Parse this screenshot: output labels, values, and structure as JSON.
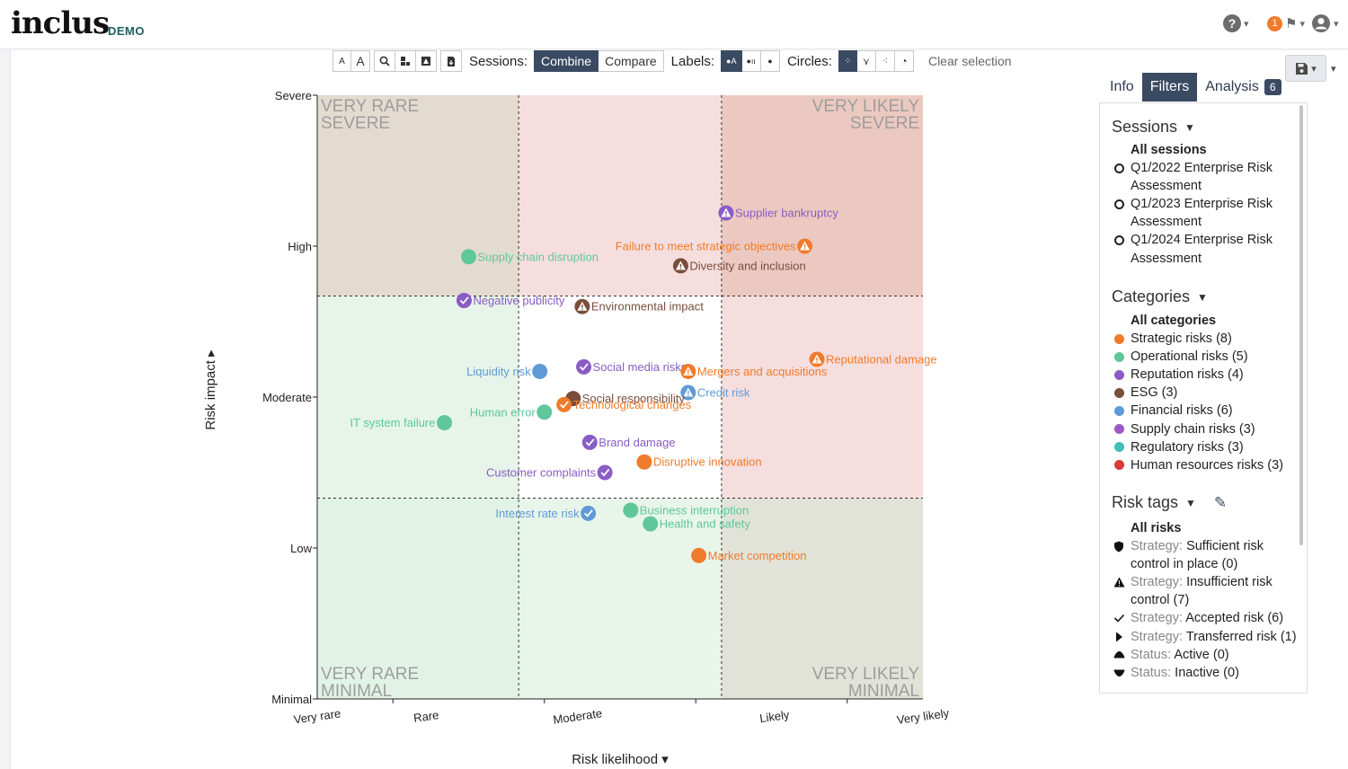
{
  "header": {
    "logo": "inclus",
    "logo_tag": "DEMO",
    "help_icon": "?",
    "notification_count": "1"
  },
  "toolbar": {
    "small_a": "A",
    "large_a": "A",
    "sessions_label": "Sessions:",
    "combine": "Combine",
    "compare": "Compare",
    "labels_label": "Labels:",
    "circles_label": "Circles:",
    "clear_selection": "Clear selection"
  },
  "tabs": {
    "info": "Info",
    "filters": "Filters",
    "analysis": "Analysis",
    "analysis_count": "6"
  },
  "filters": {
    "sessions_title": "Sessions",
    "sessions": [
      "All sessions",
      "Q1/2022 Enterprise Risk Assessment",
      "Q1/2023 Enterprise Risk Assessment",
      "Q1/2024 Enterprise Risk Assessment"
    ],
    "categories_title": "Categories",
    "categories": [
      {
        "label": "All categories",
        "color": ""
      },
      {
        "label": "Strategic risks (8)",
        "color": "#f07b2a"
      },
      {
        "label": "Operational risks (5)",
        "color": "#5fc79a"
      },
      {
        "label": "Reputation risks (4)",
        "color": "#8a5cc5"
      },
      {
        "label": "ESG (3)",
        "color": "#7a4e3c"
      },
      {
        "label": "Financial risks (6)",
        "color": "#5f9ad6"
      },
      {
        "label": "Supply chain risks (3)",
        "color": "#9b59c6"
      },
      {
        "label": "Regulatory risks (3)",
        "color": "#3fbfb5"
      },
      {
        "label": "Human resources risks (3)",
        "color": "#d93a3a"
      }
    ],
    "tags_title": "Risk tags",
    "tags": [
      {
        "prefix": "",
        "label": "All risks",
        "icon": "none"
      },
      {
        "prefix": "Strategy:",
        "label": "Sufficient risk control in place (0)",
        "icon": "shield-icon"
      },
      {
        "prefix": "Strategy:",
        "label": "Insufficient risk control (7)",
        "icon": "warning-icon"
      },
      {
        "prefix": "Strategy:",
        "label": "Accepted risk (6)",
        "icon": "check-icon"
      },
      {
        "prefix": "Strategy:",
        "label": "Transferred risk (1)",
        "icon": "play-icon"
      },
      {
        "prefix": "Status:",
        "label": "Active (0)",
        "icon": "triangle-up-icon"
      },
      {
        "prefix": "Status:",
        "label": "Inactive (0)",
        "icon": "triangle-down-icon"
      }
    ]
  },
  "chart_data": {
    "type": "scatter",
    "title": "",
    "xlabel": "Risk likelihood",
    "ylabel": "Risk impact",
    "x_ticks": [
      "Very rare",
      "Rare",
      "Moderate",
      "Likely",
      "Very likely"
    ],
    "y_ticks": [
      "Minimal",
      "Low",
      "Moderate",
      "High",
      "Severe"
    ],
    "xlim": [
      0,
      4
    ],
    "ylim": [
      0,
      4
    ],
    "quadrant_labels": {
      "top_left": [
        "VERY RARE",
        "SEVERE"
      ],
      "top_right": [
        "VERY LIKELY",
        "SEVERE"
      ],
      "bottom_left": [
        "VERY RARE",
        "MINIMAL"
      ],
      "bottom_right": [
        "VERY LIKELY",
        "MINIMAL"
      ]
    },
    "zone_colors": {
      "high_high": "#ecc9c0",
      "high_mid": "#f6dede",
      "high_low": "#e4dbd0",
      "mid_low": "#e6f4ea",
      "mid_mid": "#ffffff",
      "mid_high": "#f6dede",
      "low_low": "#e1f3e6",
      "low_mid": "#e8f5ea",
      "low_high": "#e2e3d8"
    },
    "points": [
      {
        "label": "Supplier bankruptcy",
        "x": 2.7,
        "y": 3.22,
        "color": "#8a5cc5",
        "tag": "warning",
        "side": "right"
      },
      {
        "label": "Failure to meet strategic objectives",
        "x": 3.22,
        "y": 3.0,
        "color": "#f07b2a",
        "tag": "warning",
        "side": "left"
      },
      {
        "label": "Supply chain disruption",
        "x": 1.0,
        "y": 2.93,
        "color": "#5fc79a",
        "tag": "none",
        "side": "right"
      },
      {
        "label": "Diversity and inclusion",
        "x": 2.4,
        "y": 2.87,
        "color": "#7a4e3c",
        "tag": "warning",
        "side": "right"
      },
      {
        "label": "Negative publicity",
        "x": 0.97,
        "y": 2.64,
        "color": "#8a5cc5",
        "tag": "check",
        "side": "right"
      },
      {
        "label": "Environmental impact",
        "x": 1.75,
        "y": 2.6,
        "color": "#7a4e3c",
        "tag": "warning",
        "side": "right"
      },
      {
        "label": "Reputational damage",
        "x": 3.3,
        "y": 2.25,
        "color": "#f07b2a",
        "tag": "warning",
        "side": "right"
      },
      {
        "label": "Social media risks",
        "x": 1.76,
        "y": 2.2,
        "color": "#8a5cc5",
        "tag": "check",
        "side": "right"
      },
      {
        "label": "Liquidity risk",
        "x": 1.47,
        "y": 2.17,
        "color": "#5f9ad6",
        "tag": "none",
        "side": "left"
      },
      {
        "label": "Mergers and acquisitions",
        "x": 2.45,
        "y": 2.17,
        "color": "#f07b2a",
        "tag": "warning",
        "side": "right"
      },
      {
        "label": "Credit risk",
        "x": 2.45,
        "y": 2.03,
        "color": "#5f9ad6",
        "tag": "warning",
        "side": "right"
      },
      {
        "label": "Social responsibility",
        "x": 1.69,
        "y": 1.99,
        "color": "#7a4e3c",
        "tag": "none",
        "side": "right"
      },
      {
        "label": "Technological changes",
        "x": 1.63,
        "y": 1.95,
        "color": "#f07b2a",
        "tag": "check",
        "side": "right"
      },
      {
        "label": "Human error",
        "x": 1.5,
        "y": 1.9,
        "color": "#5fc79a",
        "tag": "none",
        "side": "left"
      },
      {
        "label": "IT system failure",
        "x": 0.84,
        "y": 1.83,
        "color": "#5fc79a",
        "tag": "none",
        "side": "left"
      },
      {
        "label": "Brand damage",
        "x": 1.8,
        "y": 1.7,
        "color": "#8a5cc5",
        "tag": "check",
        "side": "right"
      },
      {
        "label": "Disruptive innovation",
        "x": 2.16,
        "y": 1.57,
        "color": "#f07b2a",
        "tag": "none",
        "side": "right"
      },
      {
        "label": "Customer complaints",
        "x": 1.9,
        "y": 1.5,
        "color": "#8a5cc5",
        "tag": "check",
        "side": "left"
      },
      {
        "label": "Business interruption",
        "x": 2.07,
        "y": 1.25,
        "color": "#5fc79a",
        "tag": "none",
        "side": "right"
      },
      {
        "label": "Interest rate risk",
        "x": 1.79,
        "y": 1.23,
        "color": "#5f9ad6",
        "tag": "check",
        "side": "left"
      },
      {
        "label": "Health and safety",
        "x": 2.2,
        "y": 1.16,
        "color": "#5fc79a",
        "tag": "none",
        "side": "right"
      },
      {
        "label": "Market competition",
        "x": 2.52,
        "y": 0.95,
        "color": "#f07b2a",
        "tag": "none",
        "side": "right"
      }
    ]
  }
}
